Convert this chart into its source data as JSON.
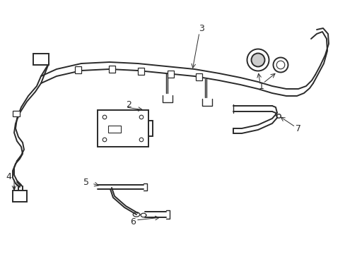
{
  "background": "#ffffff",
  "line_color": "#2a2a2a",
  "label_color": "#000000",
  "xlim": [
    0,
    4.89
  ],
  "ylim": [
    0,
    3.6
  ],
  "lw_main": 1.4,
  "lw_thin": 1.0
}
